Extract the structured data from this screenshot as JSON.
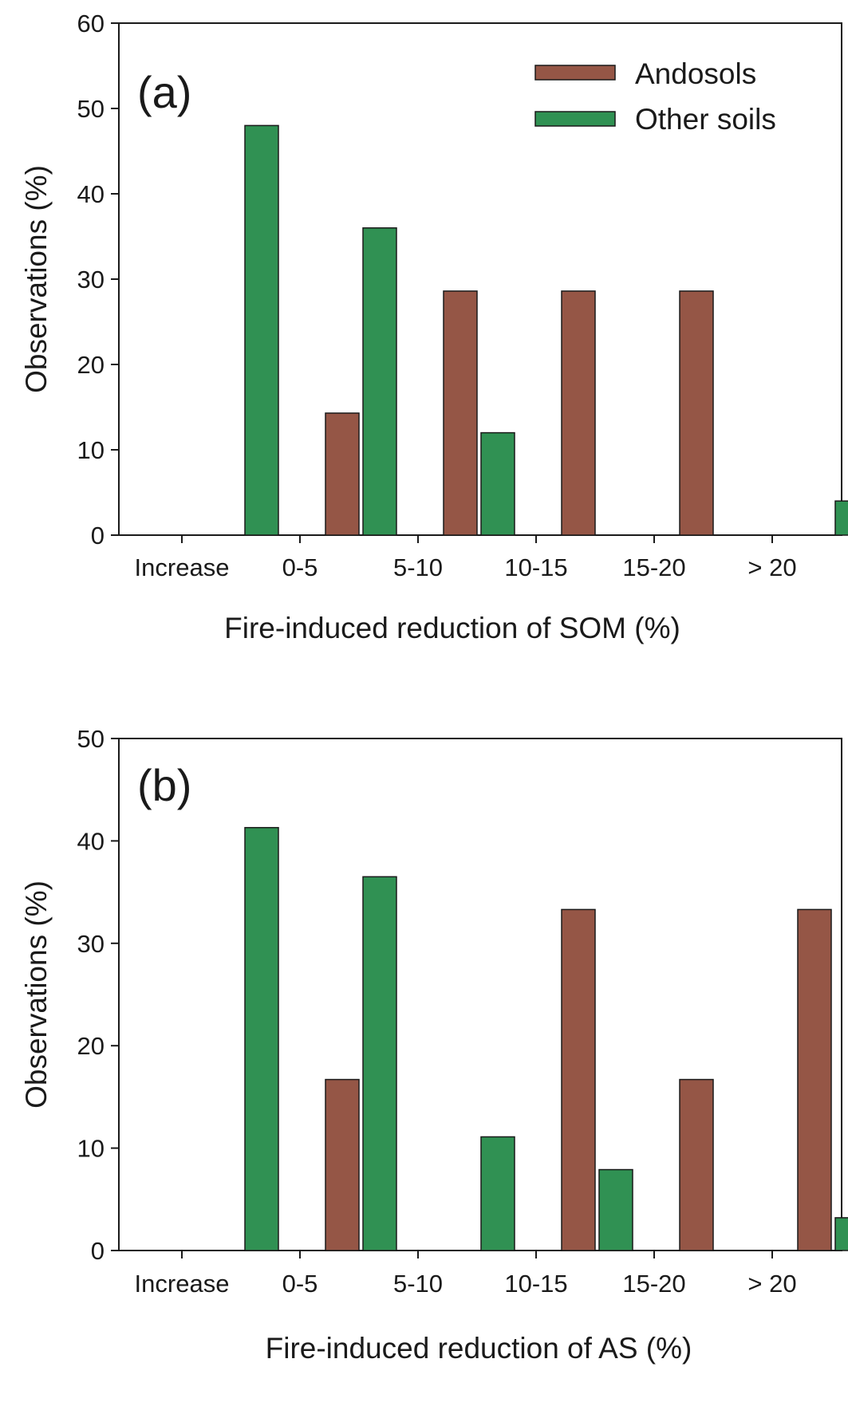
{
  "colors": {
    "andosols": "#955646",
    "other_soils": "#309153",
    "axis": "#1a1a1a"
  },
  "chart_data": [
    {
      "type": "bar",
      "panel_label": "(a)",
      "categories": [
        "Increase",
        "0-5",
        "5-10",
        "10-15",
        "15-20",
        "> 20"
      ],
      "series": [
        {
          "name": "Andosols",
          "values": [
            0,
            14.3,
            28.6,
            28.6,
            28.6,
            0
          ]
        },
        {
          "name": "Other soils",
          "values": [
            48,
            36,
            12,
            0,
            0,
            4
          ]
        }
      ],
      "xlabel": "Fire-induced reduction of SOM (%)",
      "ylabel": "Observations (%)",
      "ylim": [
        0,
        60
      ],
      "yticks": [
        0,
        10,
        20,
        30,
        40,
        50,
        60
      ],
      "legend": "top-right",
      "grid": false
    },
    {
      "type": "bar",
      "panel_label": "(b)",
      "categories": [
        "Increase",
        "0-5",
        "5-10",
        "10-15",
        "15-20",
        "> 20"
      ],
      "series": [
        {
          "name": "Andosols",
          "values": [
            0,
            16.7,
            0,
            33.3,
            16.7,
            33.3
          ]
        },
        {
          "name": "Other soils",
          "values": [
            41.3,
            36.5,
            11.1,
            7.9,
            0,
            3.2
          ]
        }
      ],
      "xlabel": "Fire-induced reduction of AS (%)",
      "ylabel": "Observations (%)",
      "ylim": [
        0,
        50
      ],
      "yticks": [
        0,
        10,
        20,
        30,
        40,
        50
      ],
      "legend": "none",
      "grid": false
    }
  ]
}
